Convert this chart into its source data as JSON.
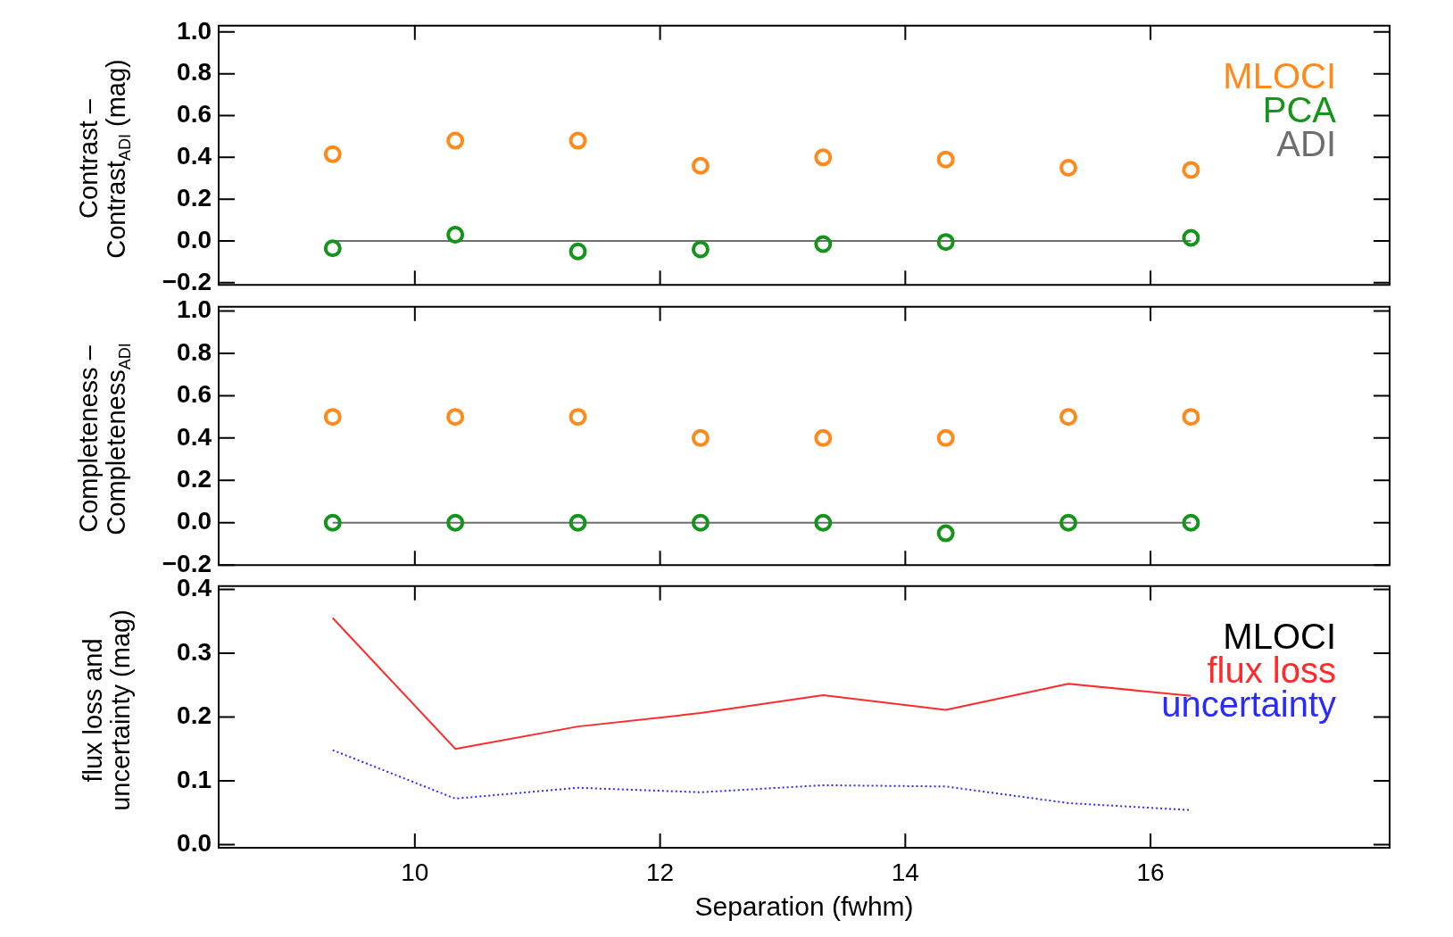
{
  "chart_data": [
    {
      "type": "scatter",
      "ylabel": "Contrast –\nContrast$_{ADI}$ (mag)",
      "xlim": [
        8.4,
        17.95
      ],
      "xticks": [
        10,
        12,
        14,
        16
      ],
      "ylim": [
        -0.21,
        1.03
      ],
      "yticks": [
        {
          "value": -0.2,
          "label": "−0.2"
        },
        {
          "value": 0,
          "label": "0.0"
        },
        {
          "value": 0.2,
          "label": "0.2"
        },
        {
          "value": 0.4,
          "label": "0.4"
        },
        {
          "value": 0.6,
          "label": "0.6"
        },
        {
          "value": 0.8,
          "label": "0.8"
        },
        {
          "value": 1,
          "label": "1.0"
        }
      ],
      "tick_labels": "y",
      "legend": "top right",
      "x": [
        9.33,
        10.33,
        11.33,
        12.33,
        13.33,
        14.33,
        15.33,
        16.33
      ],
      "series": [
        {
          "name": "MLOCI",
          "type": "scatter",
          "marker": "circle",
          "color": "#ff8a1c",
          "values": [
            0.415,
            0.48,
            0.48,
            0.36,
            0.4,
            0.39,
            0.35,
            0.34
          ]
        },
        {
          "name": "PCA",
          "type": "scatter",
          "marker": "circle",
          "color": "#13941a",
          "values": [
            -0.035,
            0.03,
            -0.05,
            -0.04,
            -0.015,
            -0.005,
            null,
            0.015
          ]
        },
        {
          "name": "ADI",
          "type": "line",
          "marker": "none",
          "color": "#6e6e6e",
          "values": [
            0,
            0,
            0,
            0,
            0,
            0,
            0,
            0
          ]
        }
      ]
    },
    {
      "type": "scatter",
      "ylabel": "Completeness –\nCompleteness$_{ADI}$",
      "xlim": [
        8.4,
        17.95
      ],
      "xticks": [
        10,
        12,
        14,
        16
      ],
      "ylim": [
        -0.2,
        1.02
      ],
      "yticks": [
        {
          "value": -0.2,
          "label": "−0.2"
        },
        {
          "value": 0,
          "label": "0.0"
        },
        {
          "value": 0.2,
          "label": "0.2"
        },
        {
          "value": 0.4,
          "label": "0.4"
        },
        {
          "value": 0.6,
          "label": "0.6"
        },
        {
          "value": 0.8,
          "label": "0.8"
        },
        {
          "value": 1,
          "label": "1.0"
        }
      ],
      "tick_labels": "y",
      "x": [
        9.33,
        10.33,
        11.33,
        12.33,
        13.33,
        14.33,
        15.33,
        16.33
      ],
      "series": [
        {
          "type": "scatter",
          "marker": "circle",
          "color": "#ff8a1c",
          "values": [
            0.5,
            0.5,
            0.5,
            0.4,
            0.4,
            0.4,
            0.5,
            0.5
          ]
        },
        {
          "type": "scatter",
          "marker": "circle",
          "color": "#13941a",
          "values": [
            0,
            0,
            0,
            0,
            0,
            -0.05,
            0,
            0
          ]
        },
        {
          "type": "line",
          "marker": "none",
          "color": "#6e6e6e",
          "values": [
            0,
            0,
            0,
            0,
            0,
            0,
            0,
            0
          ]
        }
      ]
    },
    {
      "type": "line",
      "xlabel": "Separation (fwhm)",
      "ylabel": "flux loss and\nuncertainty (mag)",
      "legend_title": "MLOCI",
      "legend": "top right",
      "xlim": [
        8.4,
        17.95
      ],
      "xticks": [
        10,
        12,
        14,
        16
      ],
      "ylim": [
        -0.005,
        0.405
      ],
      "yticks": [
        {
          "value": 0,
          "label": "0.0"
        },
        {
          "value": 0.1,
          "label": "0.1"
        },
        {
          "value": 0.2,
          "label": "0.2"
        },
        {
          "value": 0.3,
          "label": "0.3"
        },
        {
          "value": 0.4,
          "label": "0.4"
        }
      ],
      "x": [
        9.33,
        10.33,
        11.33,
        12.33,
        13.33,
        14.33,
        15.33,
        16.33
      ],
      "series": [
        {
          "name": "flux loss",
          "color": "#ff2a2a",
          "line_style": "solid",
          "values": [
            0.355,
            0.15,
            0.185,
            0.206,
            0.234,
            0.211,
            0.252,
            0.233
          ]
        },
        {
          "name": "uncertainty",
          "color": "#2a2aff",
          "line_style": "dotted",
          "values": [
            0.148,
            0.072,
            0.089,
            0.082,
            0.093,
            0.091,
            0.065,
            0.054
          ]
        }
      ]
    }
  ]
}
